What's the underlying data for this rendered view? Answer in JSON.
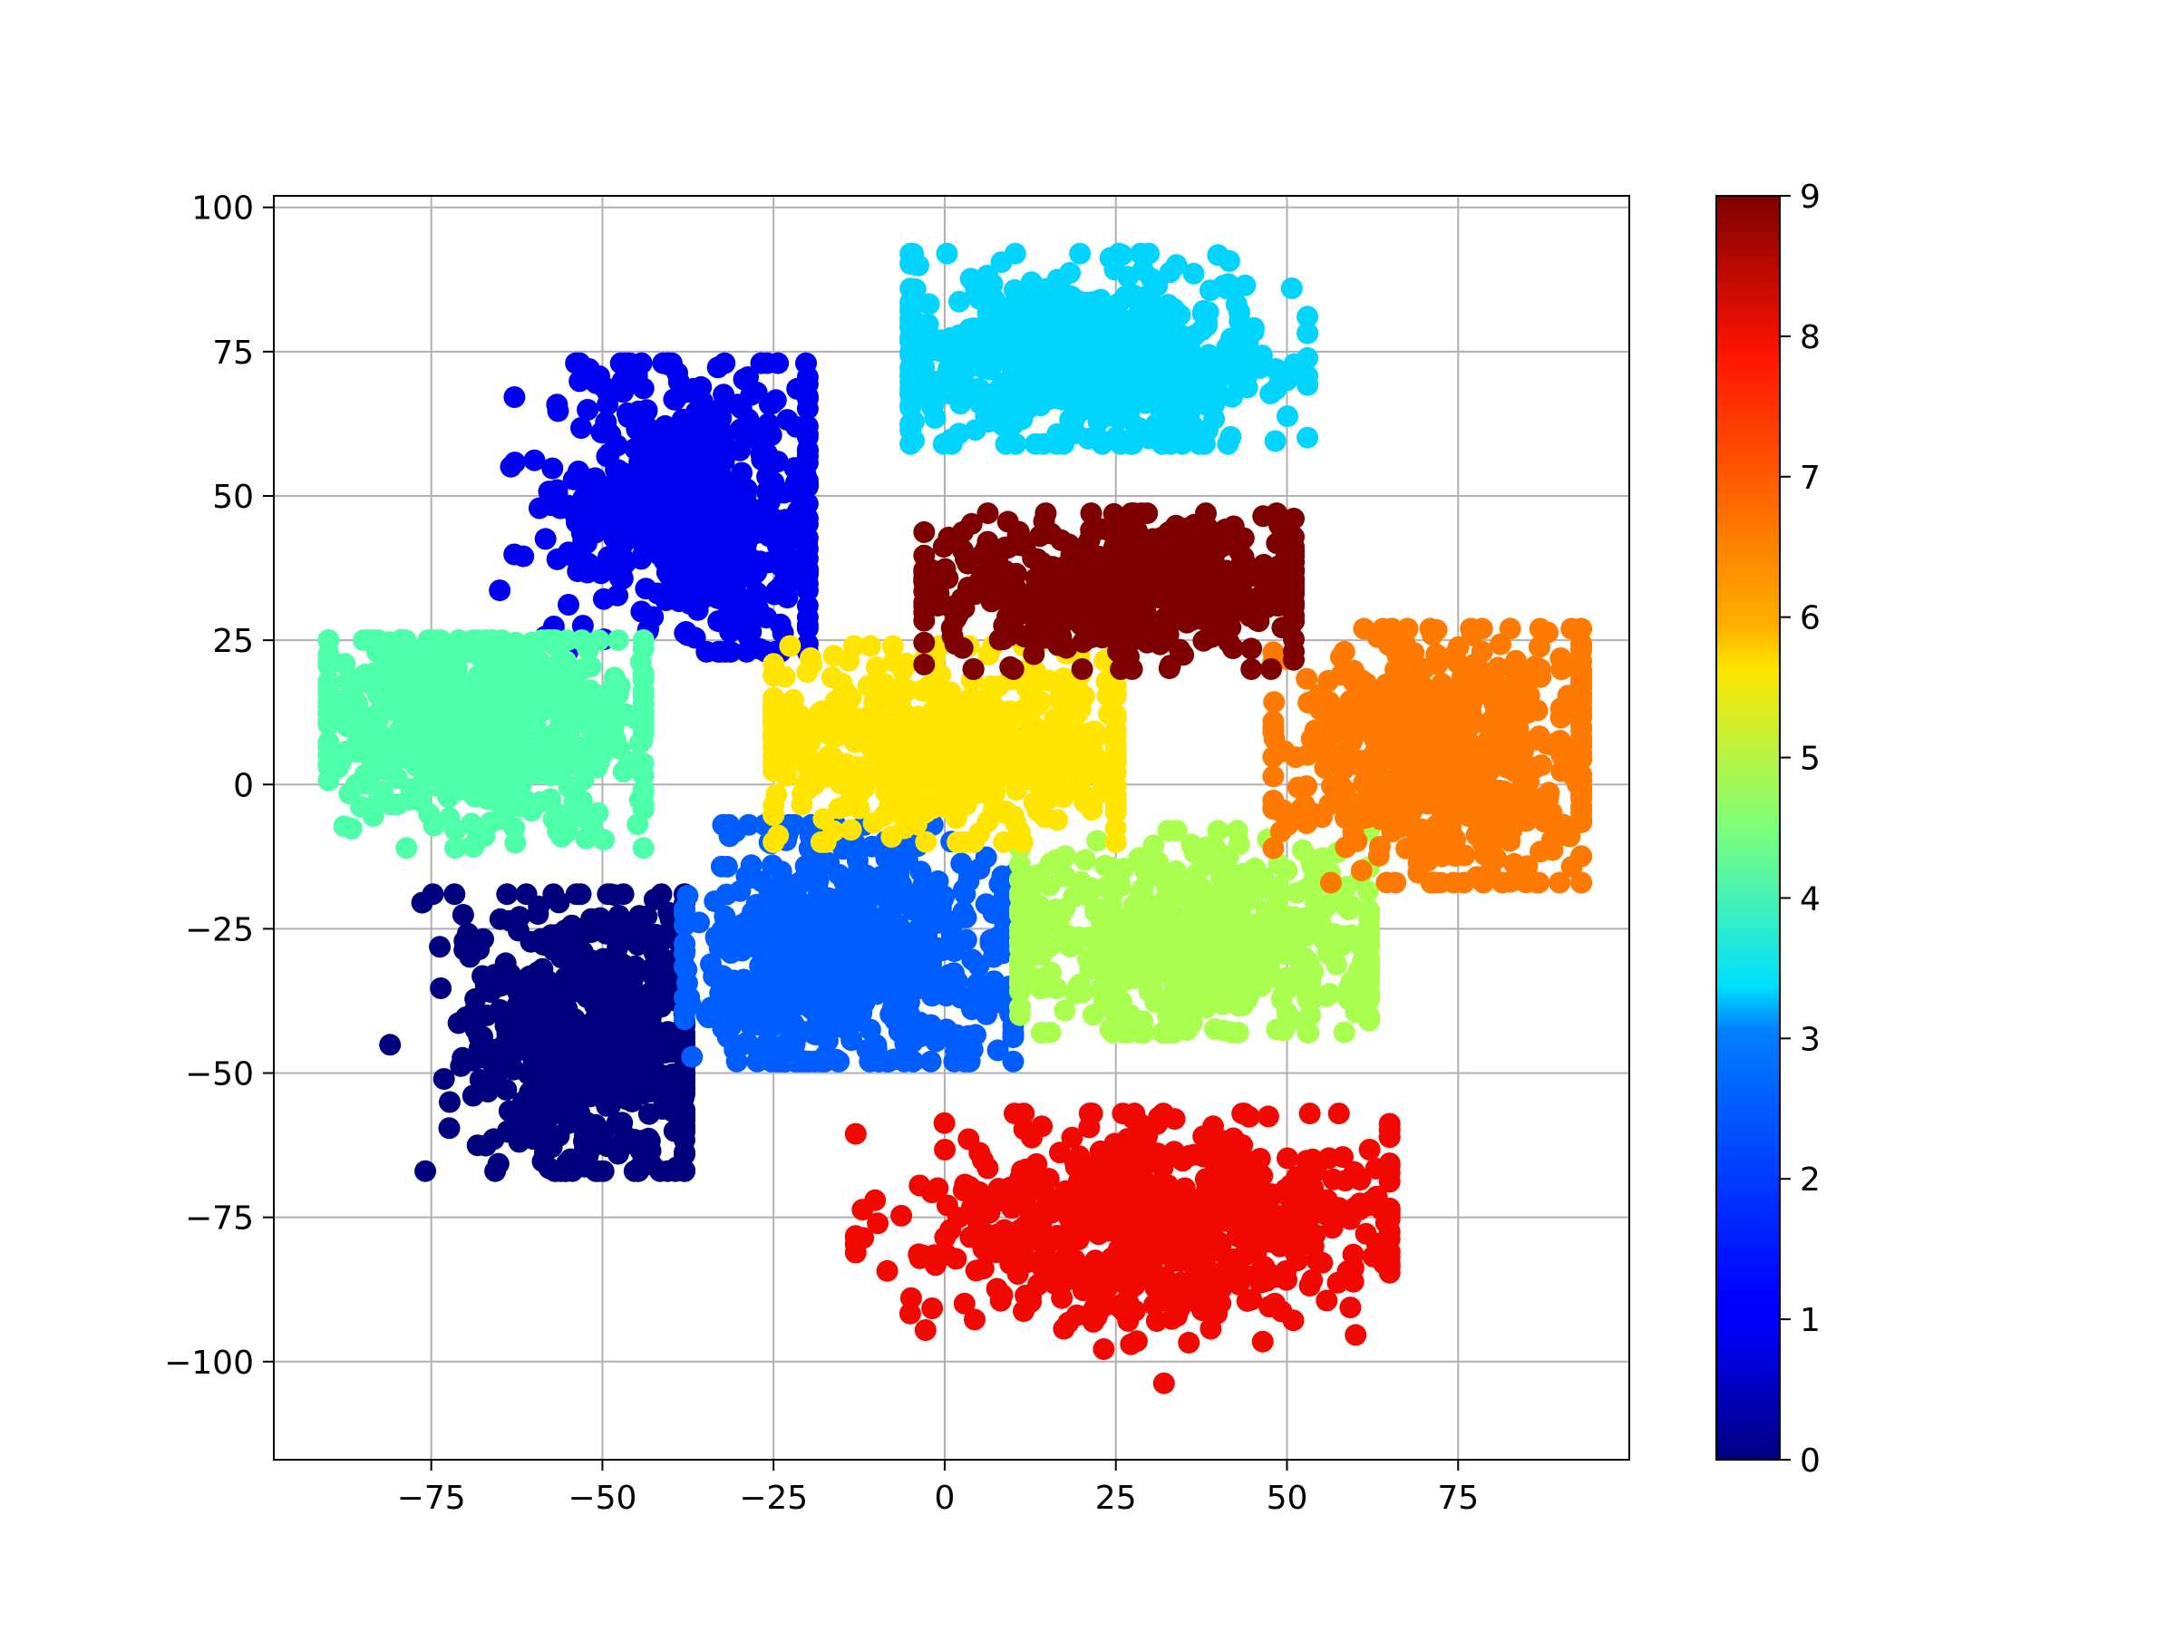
{
  "chart_data": {
    "type": "scatter",
    "title": "",
    "xlabel": "",
    "ylabel": "",
    "xlim": [
      -98,
      100
    ],
    "ylim": [
      -117,
      102
    ],
    "grid": true,
    "x_ticks": [
      -75,
      -50,
      -25,
      0,
      25,
      50,
      75
    ],
    "x_tick_labels": [
      "−75",
      "−50",
      "−25",
      "0",
      "25",
      "50",
      "75"
    ],
    "y_ticks": [
      100,
      75,
      50,
      25,
      0,
      -25,
      -50,
      -75,
      -100
    ],
    "y_tick_labels": [
      "100",
      "75",
      "50",
      "25",
      "0",
      "−25",
      "−50",
      "−75",
      "−100"
    ],
    "colormap": "jet",
    "colorbar": {
      "range": [
        0,
        9
      ],
      "ticks": [
        0,
        1,
        2,
        3,
        4,
        5,
        6,
        7,
        8,
        9
      ],
      "tick_labels": [
        "0",
        "1",
        "2",
        "3",
        "4",
        "5",
        "6",
        "7",
        "8",
        "9"
      ]
    },
    "cluster_colors": {
      "0": "#00007f",
      "1": "#0000f1",
      "2": "#005dff",
      "3": "#00d4ff",
      "4": "#4dffa9",
      "5": "#a9ff4d",
      "6": "#ffe500",
      "7": "#ff7a00",
      "8": "#f10800",
      "9": "#7f0000"
    },
    "clusters": [
      {
        "label": 0,
        "center": [
          -52,
          -45
        ],
        "spread": [
          10,
          13
        ],
        "x_range": [
          -82,
          -38
        ],
        "y_range": [
          -67,
          -19
        ],
        "approx_points": 600
      },
      {
        "label": 1,
        "center": [
          -36,
          48
        ],
        "spread": [
          11,
          13
        ],
        "x_range": [
          -65,
          -20
        ],
        "y_range": [
          23,
          73
        ],
        "approx_points": 600
      },
      {
        "label": 2,
        "center": [
          -14,
          -30
        ],
        "spread": [
          12,
          11
        ],
        "x_range": [
          -38,
          10
        ],
        "y_range": [
          -48,
          -7
        ],
        "approx_points": 600
      },
      {
        "label": 3,
        "center": [
          19,
          74
        ],
        "spread": [
          16,
          8
        ],
        "x_range": [
          -5,
          53
        ],
        "y_range": [
          59,
          92
        ],
        "approx_points": 600
      },
      {
        "label": 4,
        "center": [
          -67,
          10
        ],
        "spread": [
          13,
          9
        ],
        "x_range": [
          -90,
          -44
        ],
        "y_range": [
          -11,
          25
        ],
        "approx_points": 600
      },
      {
        "label": 5,
        "center": [
          35,
          -28
        ],
        "spread": [
          15,
          8
        ],
        "x_range": [
          11,
          62
        ],
        "y_range": [
          -43,
          -8
        ],
        "approx_points": 600
      },
      {
        "label": 6,
        "center": [
          0,
          7
        ],
        "spread": [
          15,
          8
        ],
        "x_range": [
          -25,
          25
        ],
        "y_range": [
          -10,
          24
        ],
        "approx_points": 600
      },
      {
        "label": 7,
        "center": [
          74,
          5
        ],
        "spread": [
          13,
          11
        ],
        "x_range": [
          48,
          93
        ],
        "y_range": [
          -17,
          27
        ],
        "approx_points": 600
      },
      {
        "label": 8,
        "center": [
          32,
          -76
        ],
        "spread": [
          18,
          9
        ],
        "x_range": [
          -13,
          65
        ],
        "y_range": [
          -107,
          -57
        ],
        "approx_points": 700
      },
      {
        "label": 9,
        "center": [
          26,
          35
        ],
        "spread": [
          15,
          6
        ],
        "x_range": [
          -3,
          51
        ],
        "y_range": [
          20,
          47
        ],
        "approx_points": 600
      }
    ]
  }
}
